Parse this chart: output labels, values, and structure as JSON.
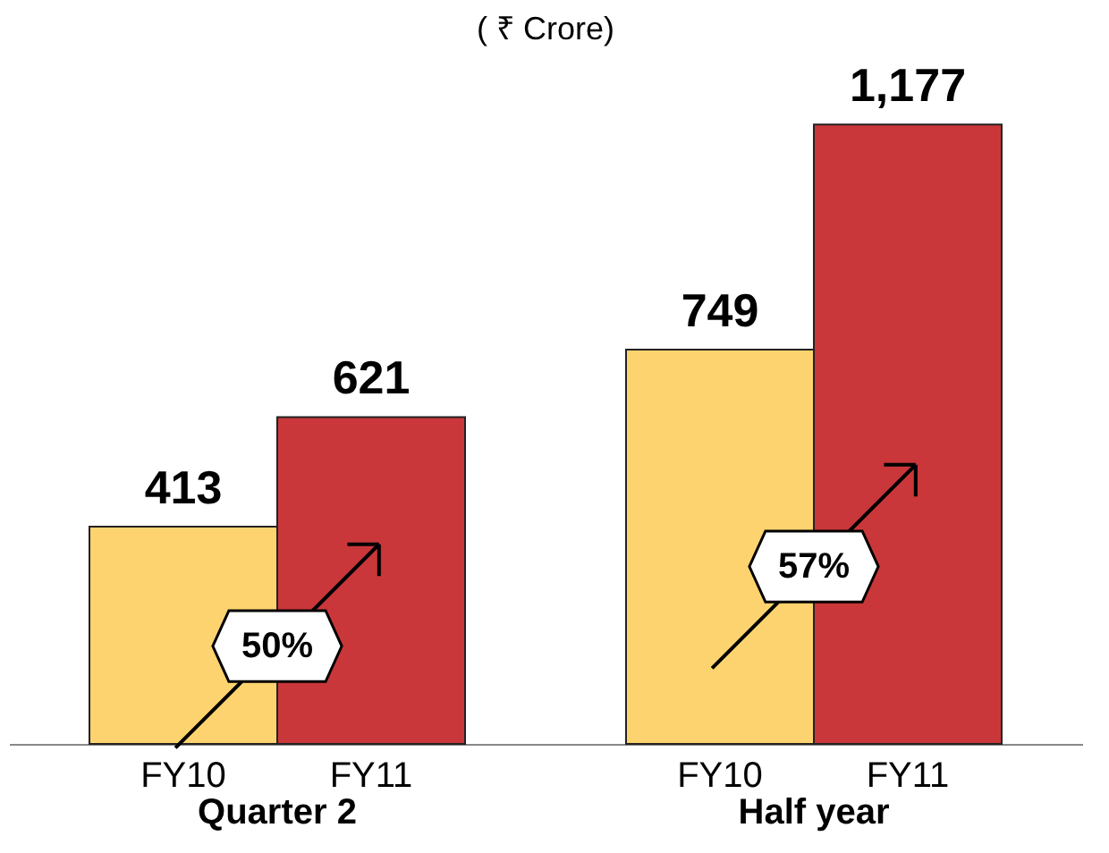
{
  "chart_data": {
    "type": "bar",
    "title": "( ₹ Crore)",
    "categories": [
      "Quarter 2",
      "Half year"
    ],
    "series": [
      {
        "name": "FY10",
        "color": "#fdd36f",
        "values": [
          413,
          749
        ],
        "value_labels": [
          "413",
          "749"
        ]
      },
      {
        "name": "FY11",
        "color": "#c9373a",
        "values": [
          621,
          1177
        ],
        "value_labels": [
          "621",
          "1,177"
        ]
      }
    ],
    "tick_labels": "x",
    "legend": false,
    "annotations": [
      "50%",
      "57%"
    ]
  }
}
